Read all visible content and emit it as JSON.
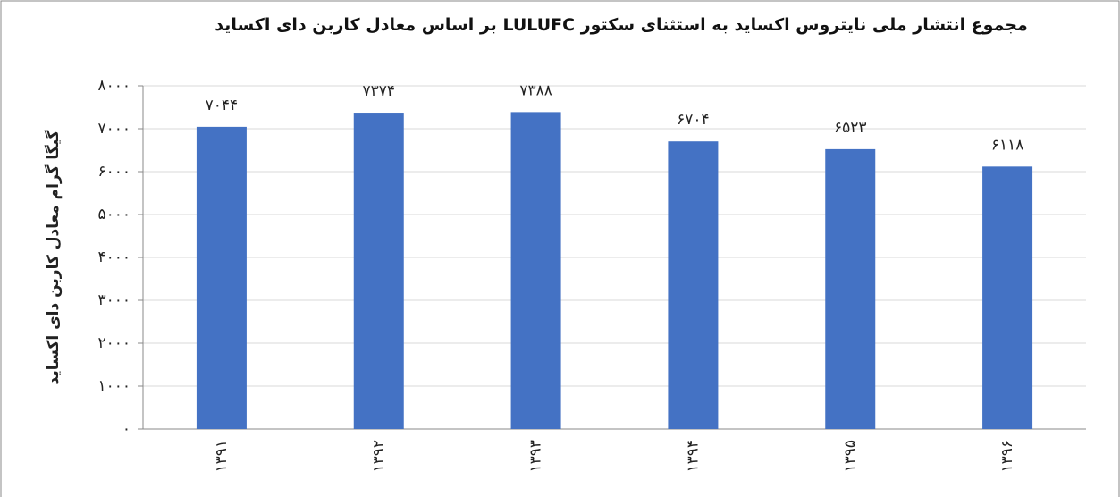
{
  "chart_data": {
    "type": "bar",
    "title": "مجموع انتشار ملی نایتروس اکساید به استثنای سکتور LULUFC بر اساس معادل کاربن دای اکساید",
    "y_label": "گیگا گرام معادل کاربن دای اکساید",
    "categories": [
      "۱۳۹۱",
      "۱۳۹۲",
      "۱۳۹۳",
      "۱۳۹۴",
      "۱۳۹۵",
      "۱۳۹۶"
    ],
    "values": [
      7044,
      7374,
      7388,
      6704,
      6523,
      6118
    ],
    "value_labels": [
      "۷۰۴۴",
      "۷۳۷۴",
      "۷۳۸۸",
      "۶۷۰۴",
      "۶۵۲۳",
      "۶۱۱۸"
    ],
    "color": "#4472c4",
    "ylim": [
      0,
      8000
    ],
    "yticks": [
      {
        "value": 0,
        "label": "۰"
      },
      {
        "value": 1000,
        "label": "۱۰۰۰"
      },
      {
        "value": 2000,
        "label": "۲۰۰۰"
      },
      {
        "value": 3000,
        "label": "۳۰۰۰"
      },
      {
        "value": 4000,
        "label": "۴۰۰۰"
      },
      {
        "value": 5000,
        "label": "۵۰۰۰"
      },
      {
        "value": 6000,
        "label": "۶۰۰۰"
      },
      {
        "value": 7000,
        "label": "۷۰۰۰"
      },
      {
        "value": 8000,
        "label": "۸۰۰۰"
      }
    ],
    "grid": true
  }
}
